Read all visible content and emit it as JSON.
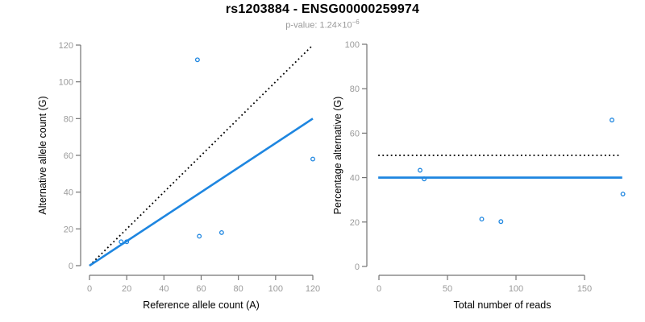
{
  "header": {
    "title": "rs1203884 - ENSG00000259974",
    "subtitle_prefix": "p-value: 1.24×10",
    "subtitle_exponent": "−6"
  },
  "colors": {
    "accent_blue": "#1E86E0",
    "dotted_black": "#000000",
    "axis_gray": "#737373",
    "tick_label_gray": "#9A9A9A",
    "axis_title_black": "#000000"
  },
  "chart_data": [
    {
      "type": "scatter",
      "title": "",
      "xlabel": "Reference allele count (A)",
      "ylabel": "Alternative allele count (G)",
      "xlim": [
        0,
        120
      ],
      "ylim": [
        0,
        120
      ],
      "xticks": [
        0,
        20,
        40,
        60,
        80,
        100,
        120
      ],
      "yticks": [
        0,
        20,
        40,
        60,
        80,
        100,
        120
      ],
      "grid": false,
      "legend": null,
      "points": [
        [
          17,
          13
        ],
        [
          20,
          13
        ],
        [
          58,
          112
        ],
        [
          59,
          16
        ],
        [
          71,
          18
        ],
        [
          120,
          58
        ]
      ],
      "lines": [
        {
          "name": "identity-line",
          "style": "dotted",
          "color": "#000000",
          "width": 1.8,
          "x1": 0,
          "y1": 0,
          "x2": 120,
          "y2": 120
        },
        {
          "name": "regression-line",
          "style": "solid",
          "color": "#1E86E0",
          "width": 2.6,
          "x1": 0,
          "y1": 0,
          "x2": 120,
          "y2": 80
        }
      ]
    },
    {
      "type": "scatter",
      "title": "",
      "xlabel": "Total number of reads",
      "ylabel": "Percentage alternative (G)",
      "xlim": [
        0,
        180
      ],
      "ylim": [
        0,
        100
      ],
      "xticks": [
        0,
        50,
        100,
        150
      ],
      "yticks": [
        0,
        20,
        40,
        60,
        80,
        100
      ],
      "grid": false,
      "legend": null,
      "points": [
        [
          30,
          43.3
        ],
        [
          33,
          39.4
        ],
        [
          75,
          21.3
        ],
        [
          89,
          20.2
        ],
        [
          170,
          65.9
        ],
        [
          178,
          32.6
        ]
      ],
      "lines": [
        {
          "name": "expected-50pct-line",
          "style": "dotted",
          "color": "#000000",
          "width": 1.8,
          "x1": -0.5,
          "y1": 50,
          "x2": 175,
          "y2": 50
        },
        {
          "name": "mean-percentage-line",
          "style": "solid",
          "color": "#1E86E0",
          "width": 2.8,
          "x1": -0.5,
          "y1": 40,
          "x2": 177.5,
          "y2": 40
        }
      ]
    }
  ]
}
